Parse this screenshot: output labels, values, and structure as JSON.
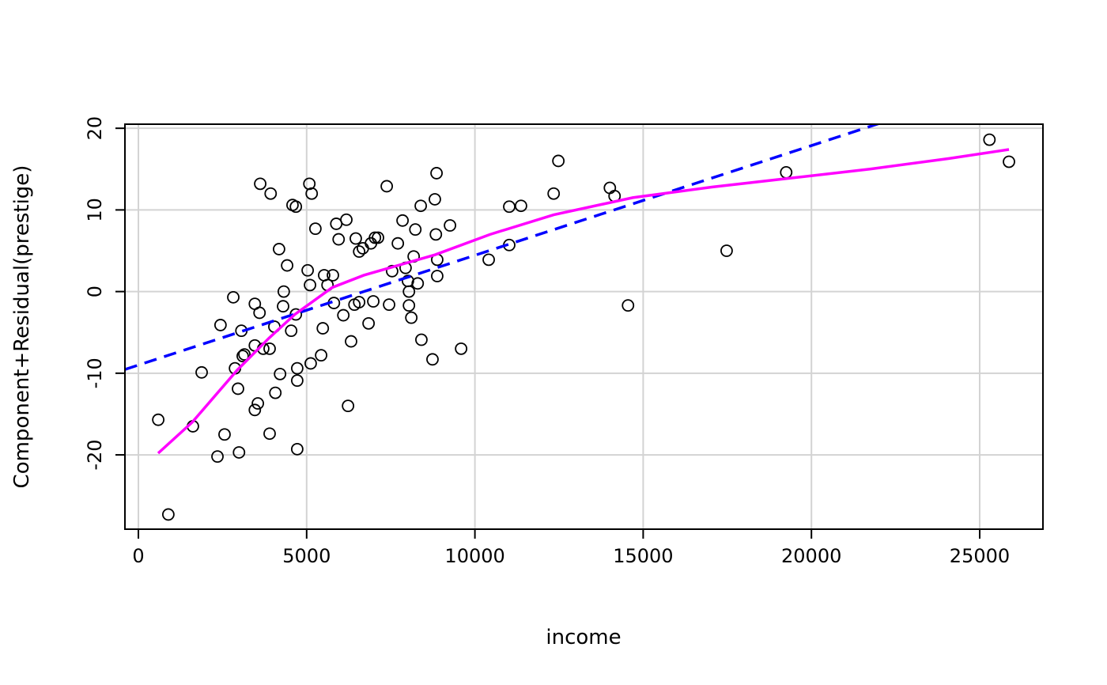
{
  "chart_data": {
    "type": "scatter",
    "xlabel": "income",
    "ylabel": "Component+Residual(prestige)",
    "xlim": [
      -400,
      26880
    ],
    "ylim": [
      -29.1,
      20.5
    ],
    "x_ticks": [
      0,
      5000,
      10000,
      15000,
      20000,
      25000
    ],
    "y_ticks": [
      -20,
      -10,
      0,
      10,
      20
    ],
    "grid": true,
    "colors": {
      "points": "#000000",
      "linear_fit": "#0000ff",
      "smooth": "#ff00ff",
      "grid": "#d3d3d3"
    },
    "points": [
      [
        590,
        -15.7
      ],
      [
        890,
        -27.3
      ],
      [
        1620,
        -16.5
      ],
      [
        1880,
        -9.9
      ],
      [
        2350,
        -20.2
      ],
      [
        2440,
        -4.1
      ],
      [
        2560,
        -17.5
      ],
      [
        2820,
        -0.7
      ],
      [
        2870,
        -9.4
      ],
      [
        2960,
        -11.9
      ],
      [
        2990,
        -19.7
      ],
      [
        3060,
        -4.8
      ],
      [
        3100,
        -7.9
      ],
      [
        3150,
        -7.7
      ],
      [
        3460,
        -1.5
      ],
      [
        3460,
        -6.6
      ],
      [
        3460,
        -14.5
      ],
      [
        3550,
        -13.7
      ],
      [
        3600,
        -2.6
      ],
      [
        3620,
        13.2
      ],
      [
        3710,
        -7.0
      ],
      [
        3900,
        -7.0
      ],
      [
        3900,
        -17.4
      ],
      [
        3930,
        12.0
      ],
      [
        4040,
        -4.3
      ],
      [
        4070,
        -12.4
      ],
      [
        4180,
        5.2
      ],
      [
        4210,
        -10.1
      ],
      [
        4300,
        -1.8
      ],
      [
        4320,
        0.0
      ],
      [
        4420,
        3.2
      ],
      [
        4540,
        -4.8
      ],
      [
        4580,
        10.6
      ],
      [
        4680,
        10.4
      ],
      [
        4680,
        -2.8
      ],
      [
        4720,
        -9.4
      ],
      [
        4720,
        -10.9
      ],
      [
        4720,
        -19.3
      ],
      [
        5030,
        2.6
      ],
      [
        5080,
        13.2
      ],
      [
        5100,
        0.8
      ],
      [
        5120,
        -8.8
      ],
      [
        5150,
        12.0
      ],
      [
        5260,
        7.7
      ],
      [
        5430,
        -7.8
      ],
      [
        5480,
        -4.5
      ],
      [
        5520,
        2.0
      ],
      [
        5620,
        0.8
      ],
      [
        5780,
        2.0
      ],
      [
        5810,
        -1.4
      ],
      [
        5880,
        8.3
      ],
      [
        5950,
        6.4
      ],
      [
        6090,
        -2.9
      ],
      [
        6180,
        8.8
      ],
      [
        6230,
        -14.0
      ],
      [
        6320,
        -6.1
      ],
      [
        6420,
        -1.6
      ],
      [
        6460,
        6.5
      ],
      [
        6560,
        4.9
      ],
      [
        6560,
        -1.3
      ],
      [
        6670,
        5.3
      ],
      [
        6840,
        -3.9
      ],
      [
        6910,
        5.9
      ],
      [
        6980,
        -1.2
      ],
      [
        7030,
        6.6
      ],
      [
        7120,
        6.6
      ],
      [
        7380,
        12.9
      ],
      [
        7450,
        -1.6
      ],
      [
        7540,
        2.5
      ],
      [
        7710,
        5.9
      ],
      [
        7850,
        8.7
      ],
      [
        7940,
        2.9
      ],
      [
        8010,
        1.3
      ],
      [
        8040,
        0.0
      ],
      [
        8040,
        -1.7
      ],
      [
        8110,
        -3.2
      ],
      [
        8180,
        4.3
      ],
      [
        8230,
        7.6
      ],
      [
        8300,
        1.0
      ],
      [
        8390,
        10.5
      ],
      [
        8410,
        -5.9
      ],
      [
        8740,
        -8.3
      ],
      [
        8810,
        11.3
      ],
      [
        8840,
        7.0
      ],
      [
        8860,
        14.5
      ],
      [
        8880,
        1.9
      ],
      [
        8880,
        3.9
      ],
      [
        9260,
        8.1
      ],
      [
        9590,
        -7.0
      ],
      [
        10410,
        3.9
      ],
      [
        11020,
        10.4
      ],
      [
        11020,
        5.7
      ],
      [
        11370,
        10.5
      ],
      [
        12340,
        12.0
      ],
      [
        12480,
        16.0
      ],
      [
        14010,
        12.7
      ],
      [
        14150,
        11.7
      ],
      [
        14550,
        -1.7
      ],
      [
        17480,
        5.0
      ],
      [
        19250,
        14.6
      ],
      [
        25290,
        18.6
      ],
      [
        25870,
        15.9
      ]
    ],
    "linear_fit": {
      "intercept": -9.0,
      "slope": 0.001344
    },
    "smooth": [
      [
        587,
        -19.8
      ],
      [
        1600,
        -16.0
      ],
      [
        2940,
        -9.6
      ],
      [
        3880,
        -5.7
      ],
      [
        4650,
        -2.8
      ],
      [
        5760,
        0.5
      ],
      [
        6700,
        2.0
      ],
      [
        8810,
        4.5
      ],
      [
        10450,
        7.0
      ],
      [
        12340,
        9.4
      ],
      [
        14690,
        11.5
      ],
      [
        17040,
        12.8
      ],
      [
        19390,
        13.9
      ],
      [
        21740,
        15.0
      ],
      [
        24090,
        16.3
      ],
      [
        25870,
        17.4
      ]
    ]
  }
}
